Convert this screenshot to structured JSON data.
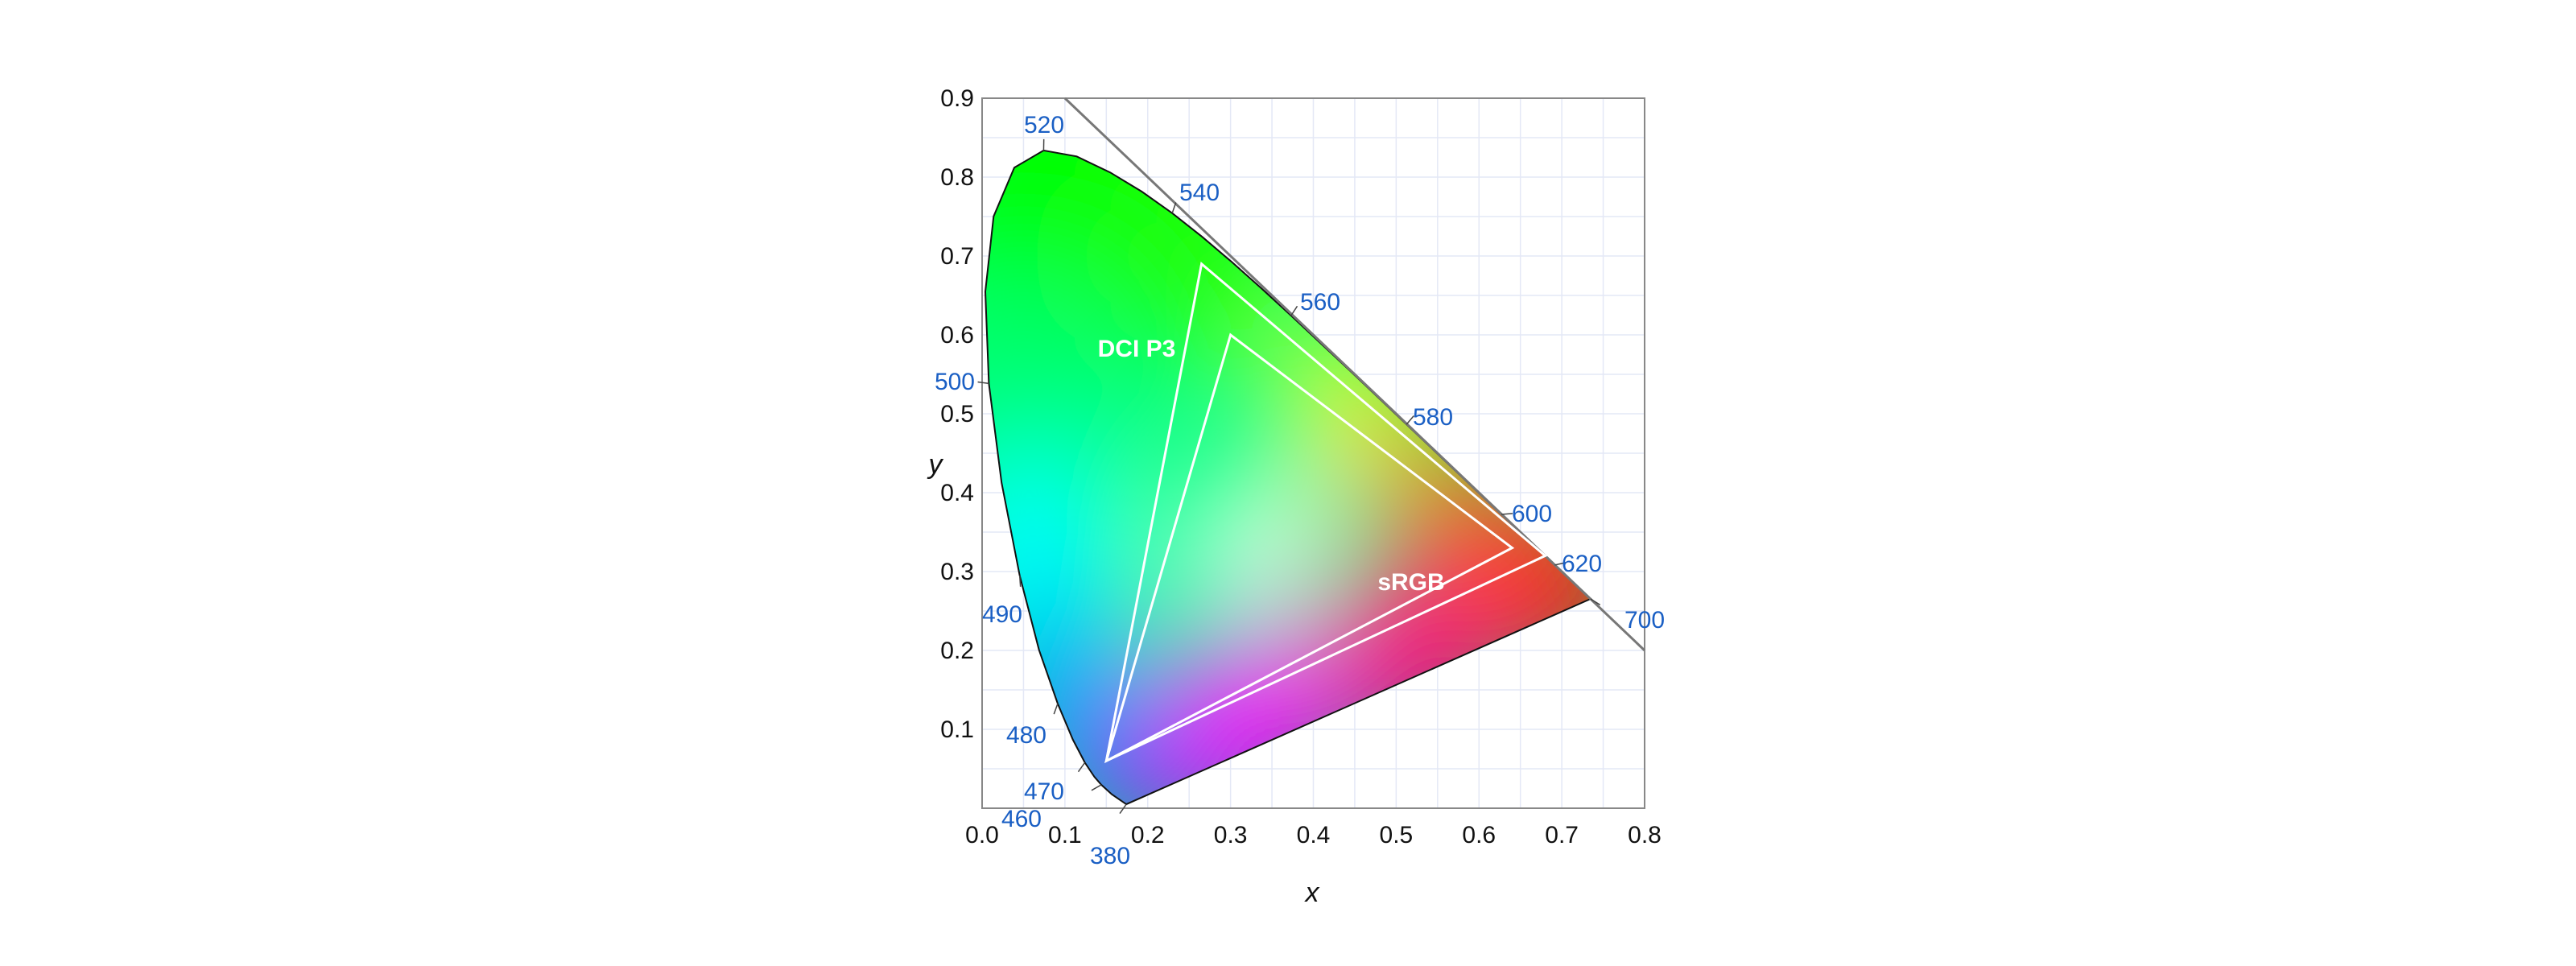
{
  "chart_data": {
    "type": "chromaticity-diagram",
    "xlabel": "x",
    "ylabel": "y",
    "xlim": [
      0,
      0.8
    ],
    "ylim": [
      0,
      0.9
    ],
    "xticks": [
      "0.0",
      "0.1",
      "0.2",
      "0.3",
      "0.4",
      "0.5",
      "0.6",
      "0.7",
      "0.8"
    ],
    "yticks": [
      "0.1",
      "0.2",
      "0.3",
      "0.4",
      "0.5",
      "0.6",
      "0.7",
      "0.8",
      "0.9"
    ],
    "grid": true,
    "spectral_locus": [
      {
        "nm": 380,
        "x": 0.1741,
        "y": 0.005
      },
      {
        "nm": 450,
        "x": 0.1566,
        "y": 0.0177
      },
      {
        "nm": 460,
        "x": 0.144,
        "y": 0.0297
      },
      {
        "nm": 465,
        "x": 0.1355,
        "y": 0.0399
      },
      {
        "nm": 470,
        "x": 0.1241,
        "y": 0.0578
      },
      {
        "nm": 475,
        "x": 0.1096,
        "y": 0.0868
      },
      {
        "nm": 480,
        "x": 0.0913,
        "y": 0.1327
      },
      {
        "nm": 485,
        "x": 0.0687,
        "y": 0.2007
      },
      {
        "nm": 490,
        "x": 0.0454,
        "y": 0.295
      },
      {
        "nm": 495,
        "x": 0.0235,
        "y": 0.4127
      },
      {
        "nm": 500,
        "x": 0.0082,
        "y": 0.5384
      },
      {
        "nm": 505,
        "x": 0.0039,
        "y": 0.6548
      },
      {
        "nm": 510,
        "x": 0.0139,
        "y": 0.7502
      },
      {
        "nm": 515,
        "x": 0.0389,
        "y": 0.812
      },
      {
        "nm": 520,
        "x": 0.0743,
        "y": 0.8338
      },
      {
        "nm": 525,
        "x": 0.1142,
        "y": 0.8262
      },
      {
        "nm": 530,
        "x": 0.1547,
        "y": 0.8059
      },
      {
        "nm": 535,
        "x": 0.1929,
        "y": 0.7816
      },
      {
        "nm": 540,
        "x": 0.2296,
        "y": 0.7543
      },
      {
        "nm": 545,
        "x": 0.2658,
        "y": 0.7243
      },
      {
        "nm": 550,
        "x": 0.3016,
        "y": 0.6923
      },
      {
        "nm": 555,
        "x": 0.3373,
        "y": 0.6589
      },
      {
        "nm": 560,
        "x": 0.3731,
        "y": 0.6245
      },
      {
        "nm": 570,
        "x": 0.4441,
        "y": 0.5547
      },
      {
        "nm": 580,
        "x": 0.5125,
        "y": 0.4866
      },
      {
        "nm": 590,
        "x": 0.5752,
        "y": 0.4242
      },
      {
        "nm": 600,
        "x": 0.627,
        "y": 0.3725
      },
      {
        "nm": 610,
        "x": 0.6658,
        "y": 0.334
      },
      {
        "nm": 620,
        "x": 0.6915,
        "y": 0.3083
      },
      {
        "nm": 630,
        "x": 0.7079,
        "y": 0.292
      },
      {
        "nm": 640,
        "x": 0.719,
        "y": 0.2809
      },
      {
        "nm": 650,
        "x": 0.726,
        "y": 0.274
      },
      {
        "nm": 700,
        "x": 0.7347,
        "y": 0.2653
      }
    ],
    "wavelength_labels": [
      "380",
      "460",
      "470",
      "480",
      "490",
      "500",
      "520",
      "540",
      "560",
      "580",
      "600",
      "620",
      "700"
    ],
    "line": {
      "equation": "x + y = 1",
      "color": "#777777"
    },
    "gamuts": [
      {
        "name": "DCI P3",
        "points": [
          [
            0.68,
            0.32
          ],
          [
            0.265,
            0.69
          ],
          [
            0.15,
            0.06
          ]
        ]
      },
      {
        "name": "sRGB",
        "points": [
          [
            0.64,
            0.33
          ],
          [
            0.3,
            0.6
          ],
          [
            0.15,
            0.06
          ]
        ]
      }
    ],
    "colors": {
      "wavelength_label": "#1a5fc4",
      "grid": "#e4e8f6",
      "gamut_outline": "#ffffff"
    }
  }
}
